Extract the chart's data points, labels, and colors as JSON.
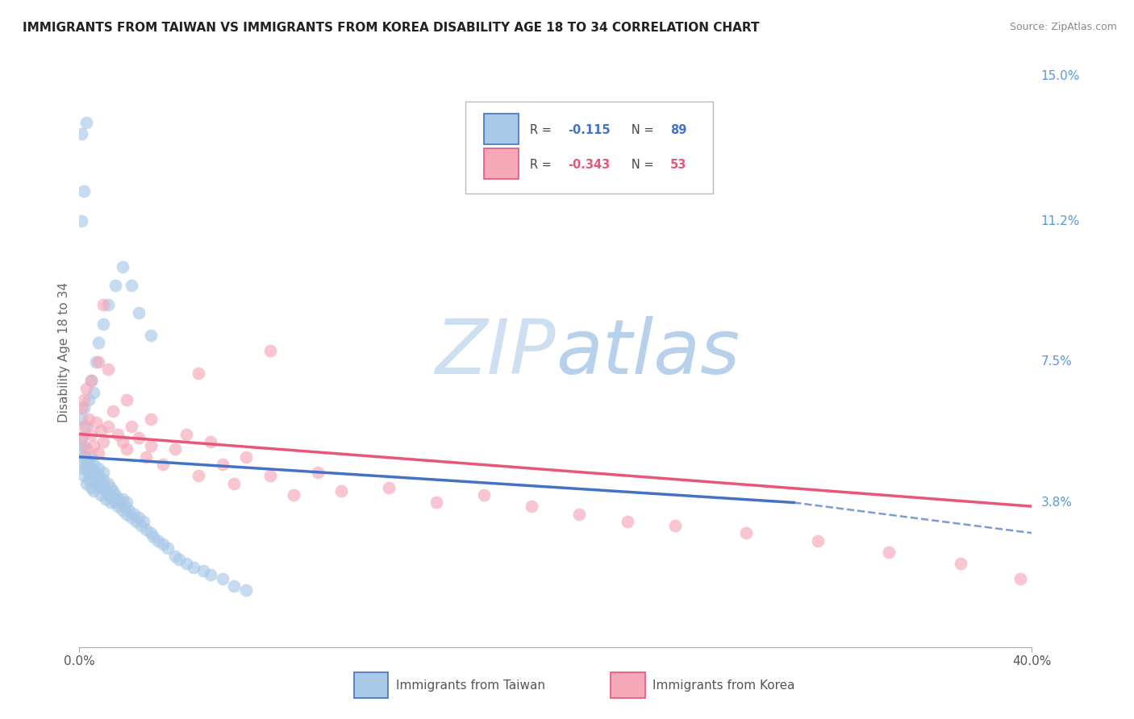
{
  "title": "IMMIGRANTS FROM TAIWAN VS IMMIGRANTS FROM KOREA DISABILITY AGE 18 TO 34 CORRELATION CHART",
  "source": "Source: ZipAtlas.com",
  "ylabel": "Disability Age 18 to 34",
  "right_yticks": [
    0.038,
    0.075,
    0.112,
    0.15
  ],
  "right_ytick_labels": [
    "3.8%",
    "7.5%",
    "11.2%",
    "15.0%"
  ],
  "taiwan_color": "#A8C8E8",
  "korea_color": "#F4A8B8",
  "taiwan_line_color": "#4472C4",
  "korea_line_color": "#E8567A",
  "xmin": 0.0,
  "xmax": 0.4,
  "ymin": 0.0,
  "ymax": 0.155,
  "grid_color": "#CCCCCC",
  "background_color": "#FFFFFF",
  "taiwan_trend_solid_end": 0.3,
  "korea_line_color2": "#E05070",
  "taiwan_scatter_x": [
    0.001,
    0.001,
    0.001,
    0.002,
    0.002,
    0.002,
    0.002,
    0.003,
    0.003,
    0.003,
    0.004,
    0.004,
    0.004,
    0.005,
    0.005,
    0.005,
    0.006,
    0.006,
    0.006,
    0.007,
    0.007,
    0.007,
    0.008,
    0.008,
    0.008,
    0.009,
    0.009,
    0.01,
    0.01,
    0.01,
    0.011,
    0.011,
    0.012,
    0.012,
    0.013,
    0.013,
    0.014,
    0.014,
    0.015,
    0.015,
    0.016,
    0.016,
    0.017,
    0.018,
    0.018,
    0.019,
    0.02,
    0.02,
    0.021,
    0.022,
    0.023,
    0.024,
    0.025,
    0.026,
    0.027,
    0.028,
    0.03,
    0.031,
    0.033,
    0.035,
    0.037,
    0.04,
    0.042,
    0.045,
    0.048,
    0.052,
    0.055,
    0.06,
    0.065,
    0.07,
    0.001,
    0.002,
    0.003,
    0.004,
    0.005,
    0.006,
    0.007,
    0.008,
    0.01,
    0.012,
    0.015,
    0.018,
    0.022,
    0.025,
    0.03,
    0.001,
    0.002,
    0.003,
    0.001
  ],
  "taiwan_scatter_y": [
    0.052,
    0.048,
    0.055,
    0.05,
    0.047,
    0.053,
    0.045,
    0.048,
    0.05,
    0.043,
    0.046,
    0.049,
    0.044,
    0.047,
    0.042,
    0.05,
    0.045,
    0.048,
    0.041,
    0.044,
    0.046,
    0.043,
    0.045,
    0.042,
    0.047,
    0.043,
    0.04,
    0.044,
    0.042,
    0.046,
    0.041,
    0.039,
    0.043,
    0.04,
    0.042,
    0.038,
    0.041,
    0.039,
    0.04,
    0.038,
    0.039,
    0.037,
    0.038,
    0.036,
    0.039,
    0.037,
    0.038,
    0.035,
    0.036,
    0.034,
    0.035,
    0.033,
    0.034,
    0.032,
    0.033,
    0.031,
    0.03,
    0.029,
    0.028,
    0.027,
    0.026,
    0.024,
    0.023,
    0.022,
    0.021,
    0.02,
    0.019,
    0.018,
    0.016,
    0.015,
    0.06,
    0.063,
    0.058,
    0.065,
    0.07,
    0.067,
    0.075,
    0.08,
    0.085,
    0.09,
    0.095,
    0.1,
    0.095,
    0.088,
    0.082,
    0.112,
    0.12,
    0.138,
    0.135
  ],
  "korea_scatter_x": [
    0.001,
    0.002,
    0.003,
    0.004,
    0.005,
    0.006,
    0.007,
    0.008,
    0.009,
    0.01,
    0.012,
    0.014,
    0.016,
    0.018,
    0.02,
    0.022,
    0.025,
    0.028,
    0.03,
    0.035,
    0.04,
    0.045,
    0.05,
    0.055,
    0.06,
    0.065,
    0.07,
    0.08,
    0.09,
    0.1,
    0.11,
    0.13,
    0.15,
    0.17,
    0.19,
    0.21,
    0.23,
    0.25,
    0.28,
    0.31,
    0.34,
    0.37,
    0.395,
    0.001,
    0.002,
    0.003,
    0.005,
    0.008,
    0.012,
    0.01,
    0.02,
    0.03,
    0.05,
    0.08
  ],
  "korea_scatter_y": [
    0.055,
    0.058,
    0.052,
    0.06,
    0.056,
    0.053,
    0.059,
    0.051,
    0.057,
    0.054,
    0.058,
    0.062,
    0.056,
    0.054,
    0.052,
    0.058,
    0.055,
    0.05,
    0.053,
    0.048,
    0.052,
    0.056,
    0.045,
    0.054,
    0.048,
    0.043,
    0.05,
    0.045,
    0.04,
    0.046,
    0.041,
    0.042,
    0.038,
    0.04,
    0.037,
    0.035,
    0.033,
    0.032,
    0.03,
    0.028,
    0.025,
    0.022,
    0.018,
    0.063,
    0.065,
    0.068,
    0.07,
    0.075,
    0.073,
    0.09,
    0.065,
    0.06,
    0.072,
    0.078
  ],
  "taiwan_trend_y0": 0.05,
  "taiwan_trend_y_solid_end": 0.038,
  "taiwan_trend_solid_x_end": 0.3,
  "taiwan_trend_y_dash_end": 0.03,
  "korea_trend_y0": 0.056,
  "korea_trend_y_end": 0.037
}
